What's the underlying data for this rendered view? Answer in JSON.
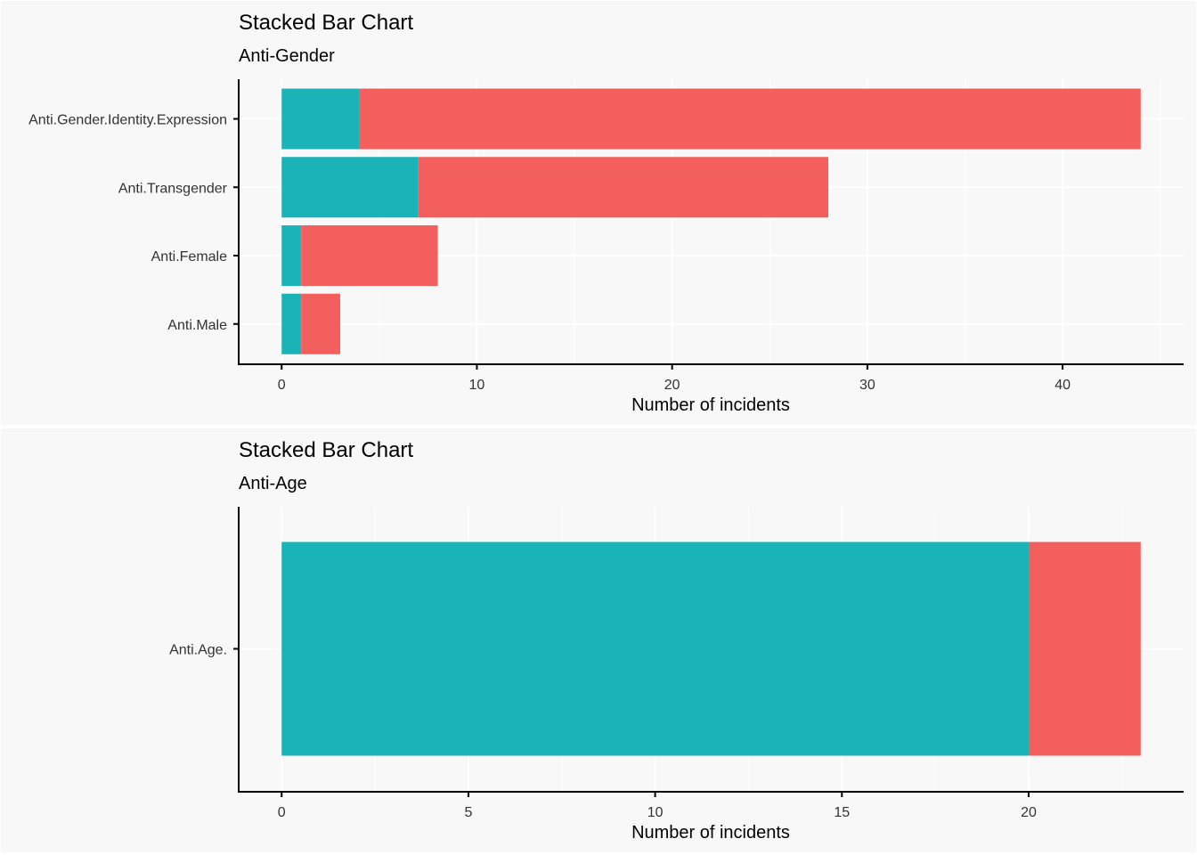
{
  "colors": {
    "series_teal": "#1ab3b8",
    "series_red": "#f35f5c",
    "panel_background": "#f8f8f8"
  },
  "chart_data": [
    {
      "type": "bar",
      "orientation": "horizontal",
      "stacked": true,
      "title": "Stacked Bar Chart",
      "subtitle": "Anti-Gender",
      "xlabel": "Number of incidents",
      "ylabel": "",
      "categories": [
        "Anti.Gender.Identity.Expression",
        "Anti.Transgender",
        "Anti.Female",
        "Anti.Male"
      ],
      "series": [
        {
          "color": "#1ab3b8",
          "values": [
            4,
            7,
            1,
            1
          ]
        },
        {
          "color": "#f35f5c",
          "values": [
            40,
            21,
            7,
            2
          ]
        }
      ],
      "xticks": [
        0,
        10,
        20,
        30,
        40
      ],
      "xlim": [
        -2.2,
        46.2
      ],
      "grid": true,
      "legend": "none"
    },
    {
      "type": "bar",
      "orientation": "horizontal",
      "stacked": true,
      "title": "Stacked Bar Chart",
      "subtitle": "Anti-Age",
      "xlabel": "Number of incidents",
      "ylabel": "",
      "categories": [
        "Anti.Age."
      ],
      "series": [
        {
          "color": "#1ab3b8",
          "values": [
            20
          ]
        },
        {
          "color": "#f35f5c",
          "values": [
            3
          ]
        }
      ],
      "xticks": [
        0,
        5,
        10,
        15,
        20
      ],
      "xlim": [
        -1.15,
        24.15
      ],
      "grid": true,
      "legend": "none"
    }
  ]
}
